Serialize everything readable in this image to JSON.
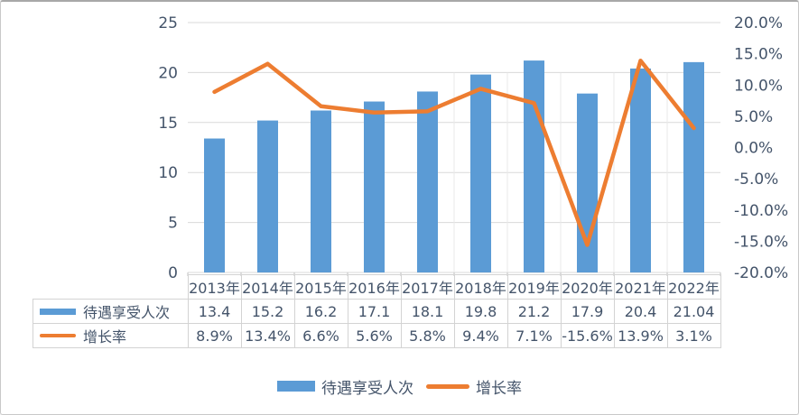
{
  "colors": {
    "bar": "#5B9BD5",
    "line": "#ED7D31",
    "gridline": "#D9D9D9",
    "gridline_vertical": "#E9E9E9",
    "tick": "#C0C0C0",
    "axis_text": "#44546A",
    "table_border": "#D3D3D3"
  },
  "chart_data": {
    "type": "combo-bar-line",
    "title": "",
    "categories": [
      "2013年",
      "2014年",
      "2015年",
      "2016年",
      "2017年",
      "2018年",
      "2019年",
      "2020年",
      "2021年",
      "2022年"
    ],
    "series": [
      {
        "name": "待遇享受人次",
        "type": "bar",
        "axis": "left",
        "values": [
          13.4,
          15.2,
          16.2,
          17.1,
          18.1,
          19.8,
          21.2,
          17.9,
          20.4,
          21.04
        ],
        "labels": [
          "13.4",
          "15.2",
          "16.2",
          "17.1",
          "18.1",
          "19.8",
          "21.2",
          "17.9",
          "20.4",
          "21.04"
        ]
      },
      {
        "name": "增长率",
        "type": "line",
        "axis": "right",
        "values": [
          8.9,
          13.4,
          6.6,
          5.6,
          5.8,
          9.4,
          7.1,
          -15.6,
          13.9,
          3.1
        ],
        "labels": [
          "8.9%",
          "13.4%",
          "6.6%",
          "5.6%",
          "5.8%",
          "9.4%",
          "7.1%",
          "-15.6%",
          "13.9%",
          "3.1%"
        ]
      }
    ],
    "left_axis": {
      "min": 0,
      "max": 25,
      "step": 5,
      "tick_labels": [
        "0",
        "5",
        "10",
        "15",
        "20",
        "25"
      ]
    },
    "right_axis": {
      "min": -20,
      "max": 20,
      "step": 5,
      "tick_labels_top_down": [
        "20.0%",
        "15.0%",
        "10.0%",
        "5.0%",
        "0.0%",
        "-5.0%",
        "-10.0%",
        "-15.0%",
        "-20.0%"
      ]
    },
    "legend": [
      "待遇享受人次",
      "增长率"
    ],
    "legend_position": "bottom",
    "grid": "horizontal",
    "data_table_shown": true
  }
}
